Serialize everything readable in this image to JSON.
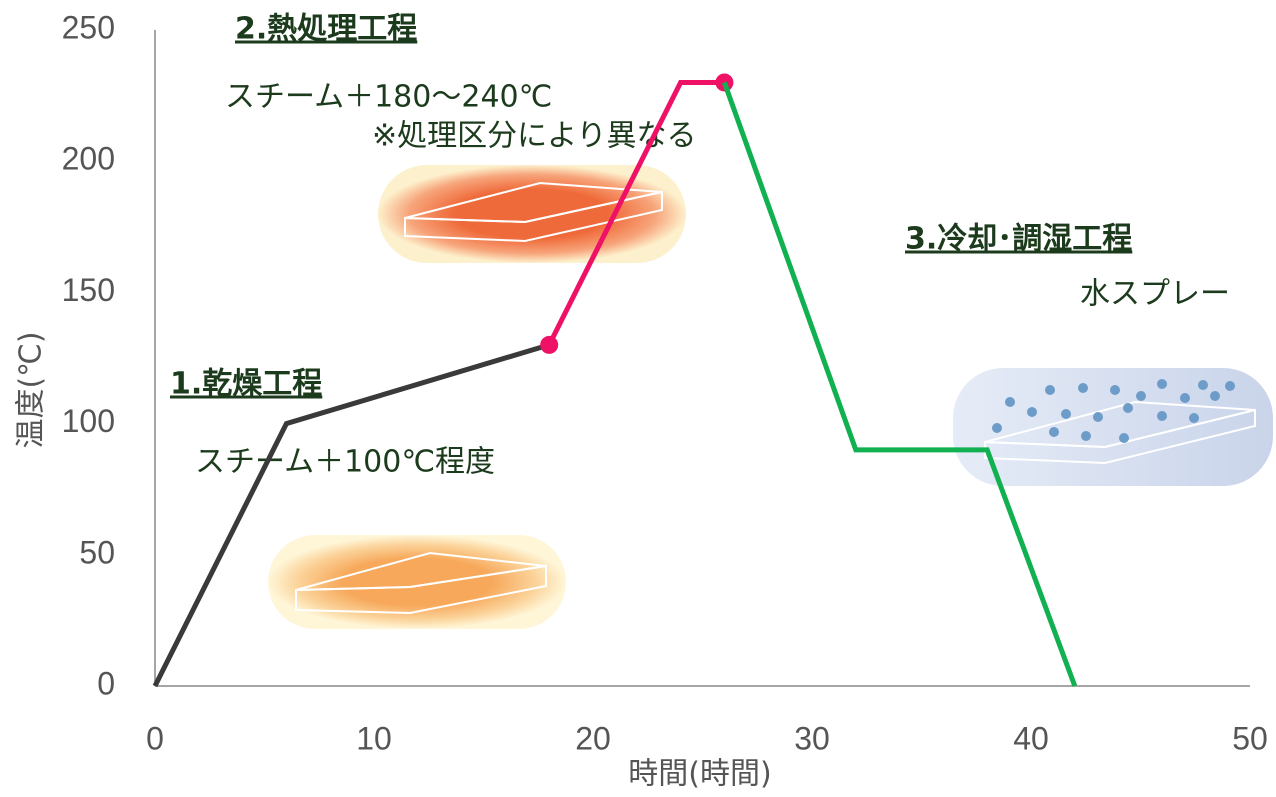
{
  "chart_data": {
    "type": "line",
    "xlabel": "時間(時間)",
    "ylabel": "温度(℃)",
    "xlim": [
      0,
      50
    ],
    "xticks": [
      0,
      10,
      20,
      30,
      40,
      50
    ],
    "ylim": [
      0,
      250
    ],
    "yticks": [
      0,
      50,
      100,
      150,
      200,
      250
    ],
    "grid": false,
    "series": [
      {
        "color": "#3a3a3a",
        "x": [
          0,
          6,
          18
        ],
        "values": [
          0,
          100,
          130
        ]
      },
      {
        "color": "#ee1166",
        "x": [
          18,
          24,
          26
        ],
        "values": [
          130,
          230,
          230
        ],
        "markers": [
          0,
          2
        ]
      },
      {
        "color": "#11b050",
        "x": [
          26,
          32,
          38,
          42
        ],
        "values": [
          230,
          90,
          90,
          0
        ]
      }
    ],
    "annotations": [
      {
        "text": "2.熱処理工程"
      },
      {
        "text": "スチーム＋180〜240℃"
      },
      {
        "text": "※処理区分により異なる"
      },
      {
        "text": "3.冷却･調湿工程"
      },
      {
        "text": "水スプレー"
      },
      {
        "text": "1.乾燥工程"
      },
      {
        "text": "スチーム＋100℃程度"
      }
    ]
  }
}
